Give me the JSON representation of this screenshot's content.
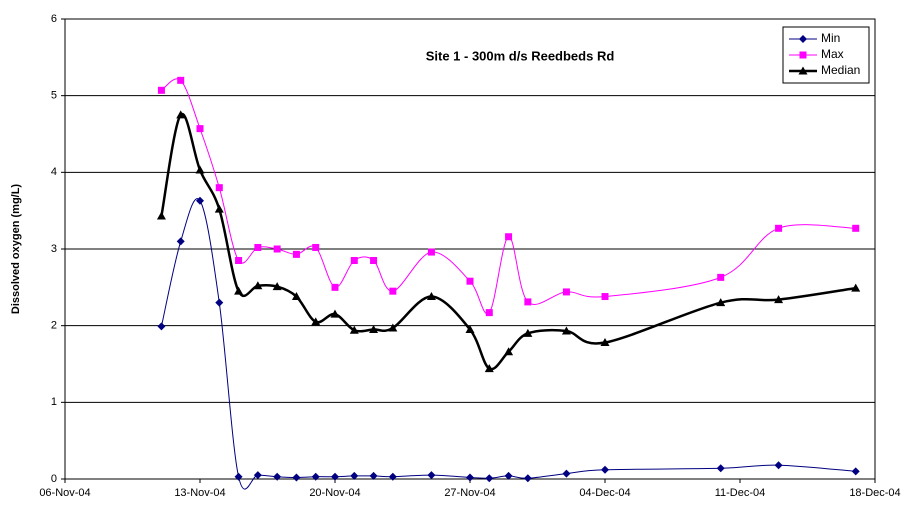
{
  "chart_data": {
    "type": "line",
    "title": "Site 1  - 300m d/s Reedbeds Rd",
    "y_label": "Dissolved oxygen (mg/L)",
    "x": [
      "11-Nov-04",
      "12-Nov-04",
      "13-Nov-04",
      "14-Nov-04",
      "15-Nov-04",
      "16-Nov-04",
      "17-Nov-04",
      "18-Nov-04",
      "19-Nov-04",
      "20-Nov-04",
      "21-Nov-04",
      "22-Nov-04",
      "23-Nov-04",
      "25-Nov-04",
      "27-Nov-04",
      "28-Nov-04",
      "29-Nov-04",
      "30-Nov-04",
      "02-Dec-04",
      "04-Dec-04",
      "10-Dec-04",
      "13-Dec-04",
      "17-Dec-04"
    ],
    "series": [
      {
        "name": "Min",
        "color": "#000080",
        "marker": "diamond",
        "values": [
          1.99,
          3.1,
          3.63,
          2.3,
          0.03,
          0.05,
          0.03,
          0.02,
          0.03,
          0.03,
          0.04,
          0.04,
          0.03,
          0.05,
          0.02,
          0.01,
          0.04,
          0.01,
          0.07,
          0.12,
          0.14,
          0.18,
          0.1
        ]
      },
      {
        "name": "Max",
        "color": "#ff00ff",
        "marker": "square",
        "values": [
          5.07,
          5.2,
          4.57,
          3.8,
          2.85,
          3.02,
          3.0,
          2.93,
          3.02,
          2.5,
          2.85,
          2.85,
          2.45,
          2.96,
          2.58,
          2.17,
          3.16,
          2.31,
          2.44,
          2.38,
          2.63,
          3.27,
          3.27
        ]
      },
      {
        "name": "Median",
        "color": "#000000",
        "marker": "triangle",
        "values": [
          3.43,
          4.75,
          4.03,
          3.52,
          2.45,
          2.52,
          2.51,
          2.38,
          2.05,
          2.15,
          1.94,
          1.95,
          1.97,
          2.38,
          1.95,
          1.44,
          1.66,
          1.9,
          1.93,
          1.78,
          2.3,
          2.34,
          2.49
        ]
      }
    ],
    "xlim": [
      "06-Nov-04",
      "18-Dec-04"
    ],
    "xticks": [
      "06-Nov-04",
      "13-Nov-04",
      "20-Nov-04",
      "27-Nov-04",
      "04-Dec-04",
      "11-Dec-04",
      "18-Dec-04"
    ],
    "ylim": [
      0,
      6
    ],
    "yticks": [
      0,
      1,
      2,
      3,
      4,
      5,
      6
    ],
    "grid": true,
    "smooth": true,
    "legend": "top-right"
  }
}
